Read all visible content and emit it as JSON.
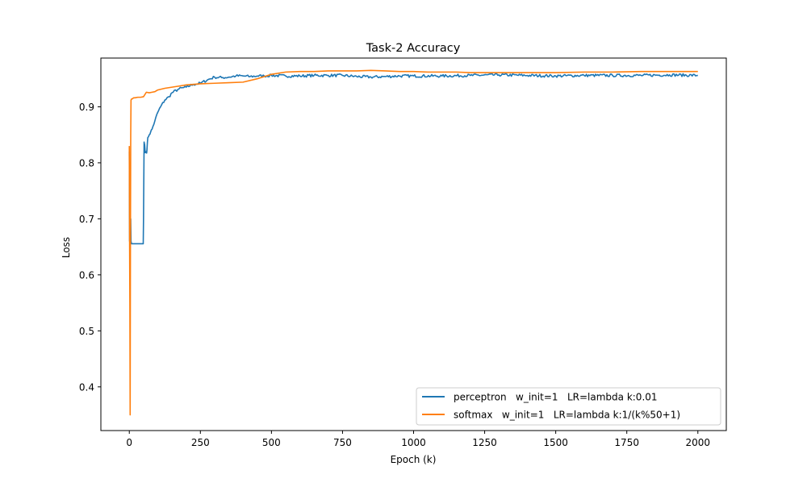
{
  "chart_data": {
    "type": "line",
    "title": "Task-2 Accuracy",
    "xlabel": "Epoch (k)",
    "ylabel": "Loss",
    "xlim": [
      -100,
      2100
    ],
    "ylim": [
      0.322,
      0.987
    ],
    "xticks": [
      0,
      250,
      500,
      750,
      1000,
      1250,
      1500,
      1750,
      2000
    ],
    "yticks": [
      0.4,
      0.5,
      0.6,
      0.7,
      0.8,
      0.9
    ],
    "grid": false,
    "legend_position": "lower-right",
    "series": [
      {
        "name": "perceptron   w_init=1   LR=lambda k:0.01",
        "color": "#1f77b4",
        "noise": 0.0025,
        "x": [
          0,
          1,
          2,
          3,
          4,
          5,
          6,
          8,
          10,
          20,
          30,
          40,
          49,
          50,
          52,
          54,
          56,
          58,
          60,
          62,
          65,
          70,
          75,
          80,
          90,
          100,
          110,
          125,
          140,
          150,
          175,
          200,
          225,
          250,
          275,
          300,
          325,
          350,
          375,
          400,
          425,
          450,
          475,
          500,
          550,
          600,
          650,
          700,
          750,
          800,
          850,
          900,
          950,
          1000,
          1100,
          1200,
          1300,
          1400,
          1500,
          1600,
          1700,
          1800,
          1900,
          2000
        ],
        "y": [
          0.82,
          0.66,
          0.68,
          0.655,
          0.6555,
          0.7,
          0.66,
          0.6555,
          0.6555,
          0.6555,
          0.6555,
          0.6555,
          0.6555,
          0.7,
          0.837,
          0.832,
          0.818,
          0.82,
          0.818,
          0.822,
          0.845,
          0.85,
          0.855,
          0.86,
          0.875,
          0.89,
          0.9,
          0.912,
          0.918,
          0.925,
          0.932,
          0.935,
          0.94,
          0.942,
          0.948,
          0.953,
          0.952,
          0.953,
          0.955,
          0.955,
          0.954,
          0.955,
          0.955,
          0.956,
          0.955,
          0.955,
          0.956,
          0.956,
          0.956,
          0.954,
          0.953,
          0.954,
          0.955,
          0.955,
          0.955,
          0.956,
          0.957,
          0.956,
          0.955,
          0.956,
          0.956,
          0.956,
          0.957,
          0.956
        ]
      },
      {
        "name": "softmax   w_init=1   LR=lambda k:1/(k%50+1)",
        "color": "#ff7f0e",
        "noise": 0,
        "x": [
          0,
          1,
          2,
          3,
          4,
          5,
          6,
          8,
          10,
          15,
          20,
          30,
          40,
          50,
          60,
          70,
          80,
          90,
          100,
          125,
          150,
          175,
          200,
          250,
          300,
          350,
          400,
          450,
          500,
          550,
          600,
          650,
          700,
          750,
          800,
          850,
          900,
          950,
          1000,
          1050,
          1100,
          1150,
          1200,
          1250,
          1300,
          1400,
          1500,
          1600,
          1700,
          1800,
          1900,
          2000
        ],
        "y": [
          0.83,
          0.66,
          0.55,
          0.35,
          0.66,
          0.85,
          0.912,
          0.914,
          0.914,
          0.916,
          0.916,
          0.917,
          0.917,
          0.918,
          0.926,
          0.925,
          0.926,
          0.927,
          0.93,
          0.933,
          0.935,
          0.937,
          0.939,
          0.941,
          0.942,
          0.943,
          0.944,
          0.95,
          0.958,
          0.962,
          0.963,
          0.963,
          0.964,
          0.964,
          0.964,
          0.965,
          0.964,
          0.963,
          0.963,
          0.962,
          0.962,
          0.962,
          0.961,
          0.961,
          0.961,
          0.961,
          0.961,
          0.962,
          0.962,
          0.963,
          0.963,
          0.963
        ]
      }
    ]
  }
}
